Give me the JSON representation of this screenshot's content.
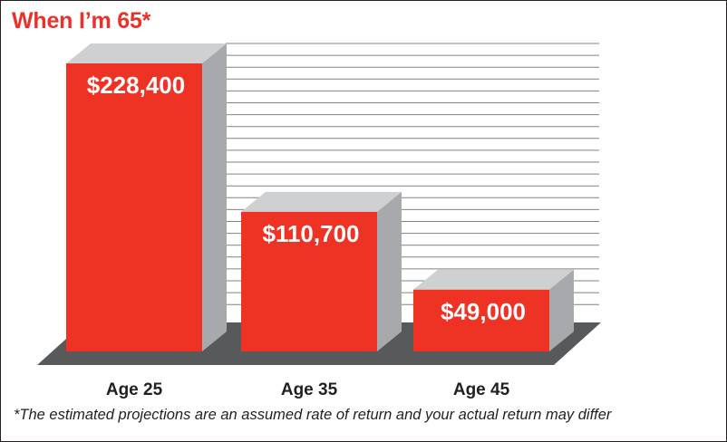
{
  "title": "When I’m 65*",
  "footnote": "*The estimated projections are an assumed rate of return and your actual return may differ",
  "colors": {
    "bar_front": "#ee3224",
    "bar_side": "#a7a9ac",
    "floor": "#58595b",
    "gridline": "#808285",
    "text": "#231f20"
  },
  "chart_data": {
    "type": "bar",
    "categories": [
      "Age 25",
      "Age 35",
      "Age 45"
    ],
    "values": [
      228400,
      110700,
      49000
    ],
    "value_labels": [
      "$228,400",
      "$110,700",
      "$49,000"
    ],
    "title": "When I’m 65*",
    "xlabel": "",
    "ylabel": "",
    "grid": true,
    "legend": "none",
    "style": "3d"
  }
}
